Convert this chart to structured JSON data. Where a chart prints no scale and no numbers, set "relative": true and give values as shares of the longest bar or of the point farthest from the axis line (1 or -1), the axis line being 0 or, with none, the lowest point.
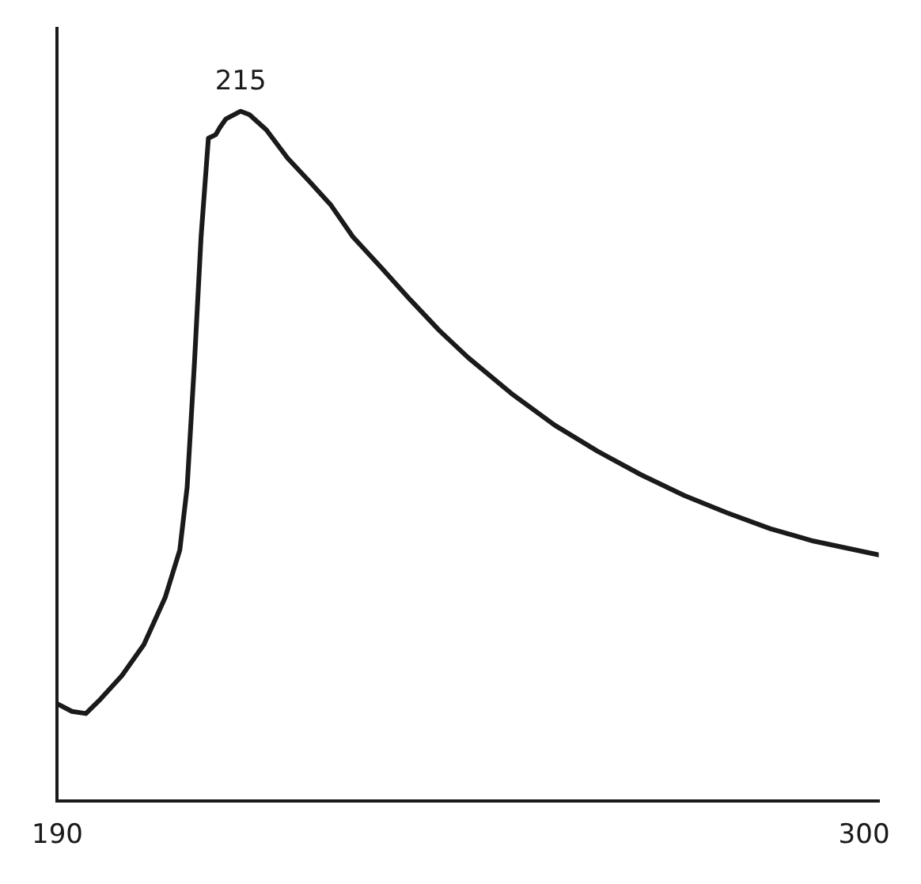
{
  "chart_data": {
    "type": "line",
    "relative": true,
    "x": [
      190,
      192,
      193.9,
      195.9,
      198.8,
      201.8,
      204.7,
      206.7,
      207.7,
      208.7,
      209.6,
      210.6,
      211.6,
      212.2,
      213,
      215,
      216.2,
      218.5,
      221.4,
      224.4,
      227.3,
      230.3,
      234.2,
      238.1,
      242.1,
      246,
      251.9,
      257.8,
      263.7,
      269.6,
      275.5,
      281.3,
      287.2,
      293.1,
      302
    ],
    "series": [
      {
        "color": "#1a1a1a",
        "values": [
          0.141,
          0.13,
          0.127,
          0.148,
          0.182,
          0.227,
          0.295,
          0.364,
          0.455,
          0.636,
          0.818,
          0.961,
          0.966,
          0.977,
          0.989,
          1.0,
          0.995,
          0.973,
          0.932,
          0.898,
          0.864,
          0.818,
          0.773,
          0.727,
          0.682,
          0.643,
          0.591,
          0.545,
          0.507,
          0.473,
          0.443,
          0.418,
          0.395,
          0.377,
          0.357
        ]
      }
    ],
    "xlim": [
      190,
      302
    ],
    "xticks": [
      190,
      300
    ],
    "annotations": [
      {
        "text": "215",
        "x": 215,
        "y": 1.0
      }
    ],
    "grid": false,
    "legend": false,
    "marker": "none",
    "line_style": "solid"
  }
}
